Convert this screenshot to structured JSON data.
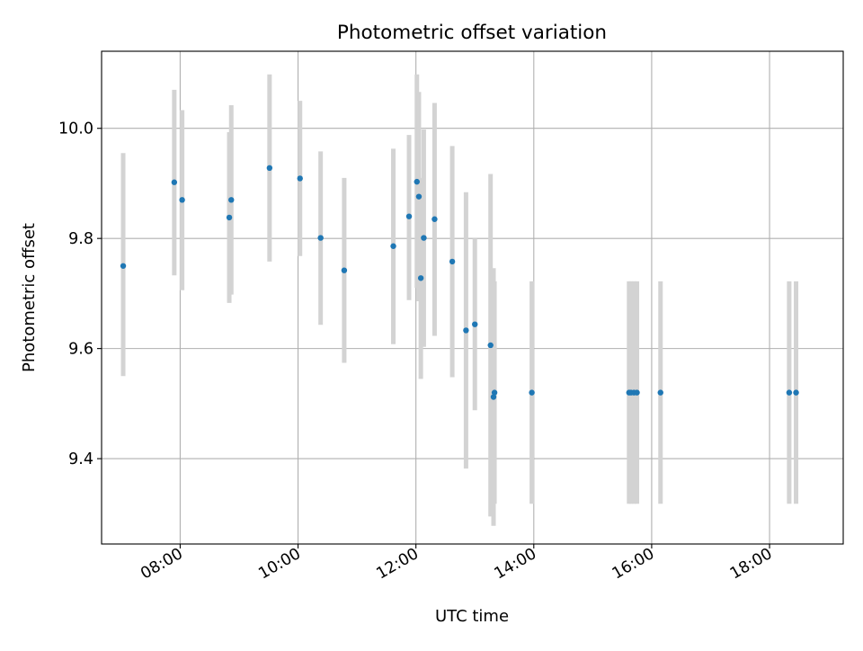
{
  "chart_data": {
    "type": "scatter",
    "title": "Photometric offset variation",
    "xlabel": "UTC time",
    "ylabel": "Photometric offset",
    "x_unit": "time of day (HH:MM, UTC)",
    "xlim": [
      "06:40",
      "19:15"
    ],
    "ylim": [
      9.245,
      10.14
    ],
    "xticks": [
      "08:00",
      "10:00",
      "12:00",
      "14:00",
      "16:00",
      "18:00"
    ],
    "yticks": [
      9.4,
      9.6,
      9.8,
      10.0
    ],
    "ytick_labels": [
      "9.4",
      "9.6",
      "9.8",
      "10.0"
    ],
    "grid": true,
    "legend": "none",
    "colors": {
      "points": "#1f77b4",
      "errorbars": "#d3d3d3",
      "grid": "#b0b0b0"
    },
    "points": [
      {
        "x": "07:02",
        "y": 9.75,
        "ylow": 9.55,
        "yhigh": 9.955
      },
      {
        "x": "07:54",
        "y": 9.902,
        "ylow": 9.733,
        "yhigh": 10.07
      },
      {
        "x": "08:02",
        "y": 9.87,
        "ylow": 9.706,
        "yhigh": 10.033
      },
      {
        "x": "08:50",
        "y": 9.838,
        "ylow": 9.683,
        "yhigh": 9.993
      },
      {
        "x": "08:52",
        "y": 9.87,
        "ylow": 9.698,
        "yhigh": 10.042
      },
      {
        "x": "09:31",
        "y": 9.928,
        "ylow": 9.758,
        "yhigh": 10.098
      },
      {
        "x": "10:02",
        "y": 9.909,
        "ylow": 9.768,
        "yhigh": 10.05
      },
      {
        "x": "10:23",
        "y": 9.801,
        "ylow": 9.643,
        "yhigh": 9.958
      },
      {
        "x": "10:47",
        "y": 9.742,
        "ylow": 9.574,
        "yhigh": 9.91
      },
      {
        "x": "11:37",
        "y": 9.786,
        "ylow": 9.608,
        "yhigh": 9.963
      },
      {
        "x": "11:53",
        "y": 9.84,
        "ylow": 9.688,
        "yhigh": 9.988
      },
      {
        "x": "12:01",
        "y": 9.903,
        "ylow": 9.71,
        "yhigh": 10.098
      },
      {
        "x": "12:03",
        "y": 9.876,
        "ylow": 9.686,
        "yhigh": 10.066
      },
      {
        "x": "12:05",
        "y": 9.728,
        "ylow": 9.545,
        "yhigh": 9.91
      },
      {
        "x": "12:08",
        "y": 9.801,
        "ylow": 9.603,
        "yhigh": 9.998
      },
      {
        "x": "12:19",
        "y": 9.835,
        "ylow": 9.623,
        "yhigh": 10.046
      },
      {
        "x": "12:37",
        "y": 9.758,
        "ylow": 9.548,
        "yhigh": 9.968
      },
      {
        "x": "12:51",
        "y": 9.633,
        "ylow": 9.382,
        "yhigh": 9.884
      },
      {
        "x": "13:00",
        "y": 9.644,
        "ylow": 9.488,
        "yhigh": 9.8
      },
      {
        "x": "13:16",
        "y": 9.606,
        "ylow": 9.295,
        "yhigh": 9.917
      },
      {
        "x": "13:19",
        "y": 9.512,
        "ylow": 9.278,
        "yhigh": 9.746
      },
      {
        "x": "13:20",
        "y": 9.52,
        "ylow": 9.318,
        "yhigh": 9.722
      },
      {
        "x": "13:58",
        "y": 9.52,
        "ylow": 9.318,
        "yhigh": 9.722
      },
      {
        "x": "15:37",
        "y": 9.52,
        "ylow": 9.318,
        "yhigh": 9.722
      },
      {
        "x": "15:39",
        "y": 9.52,
        "ylow": 9.318,
        "yhigh": 9.722
      },
      {
        "x": "15:42",
        "y": 9.52,
        "ylow": 9.318,
        "yhigh": 9.722
      },
      {
        "x": "15:45",
        "y": 9.52,
        "ylow": 9.318,
        "yhigh": 9.722
      },
      {
        "x": "16:09",
        "y": 9.52,
        "ylow": 9.318,
        "yhigh": 9.722
      },
      {
        "x": "18:20",
        "y": 9.52,
        "ylow": 9.318,
        "yhigh": 9.722
      },
      {
        "x": "18:27",
        "y": 9.52,
        "ylow": 9.318,
        "yhigh": 9.722
      }
    ]
  }
}
